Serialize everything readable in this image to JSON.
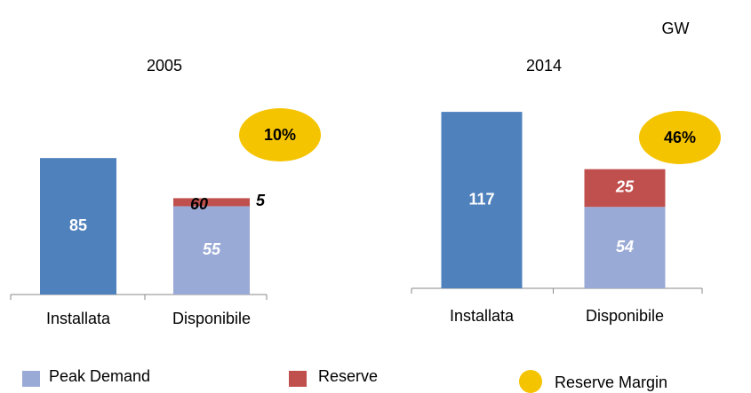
{
  "unit": "GW",
  "chart_data": [
    {
      "type": "bar",
      "stacked": true,
      "title": "2005",
      "categories": [
        "Installata",
        "Disponibile"
      ],
      "series": [
        {
          "color": "#4f81bd",
          "values": [
            85,
            null
          ]
        },
        {
          "name": "Peak Demand",
          "color": "#9aaad6",
          "values": [
            null,
            55
          ]
        },
        {
          "name": "Reserve",
          "color": "#c0504d",
          "values": [
            null,
            5
          ]
        }
      ],
      "total_label": "60",
      "reserve_margin": {
        "name": "Reserve Margin",
        "value": 10,
        "value_label": "10%",
        "color": "#f5c400"
      }
    },
    {
      "type": "bar",
      "stacked": true,
      "title": "2014",
      "categories": [
        "Installata",
        "Disponibile"
      ],
      "series": [
        {
          "color": "#4f81bd",
          "values": [
            117,
            null
          ]
        },
        {
          "color": "#9aaad6",
          "values": [
            null,
            54
          ]
        },
        {
          "color": "#c0504d",
          "values": [
            null,
            25
          ]
        }
      ],
      "reserve_margin": {
        "value": 46,
        "value_label": "46%",
        "color": "#f5c400"
      }
    }
  ]
}
